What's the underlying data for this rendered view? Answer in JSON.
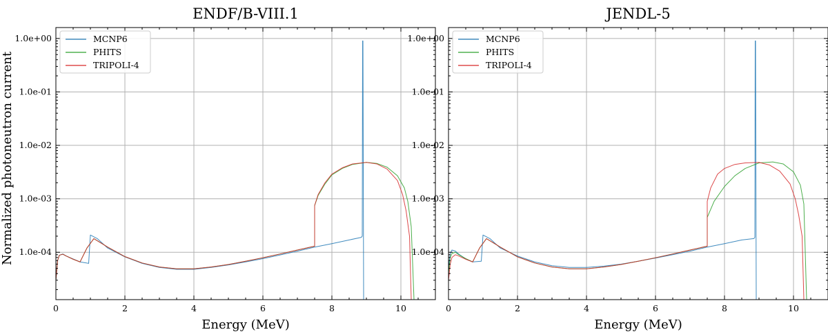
{
  "ylabel": "Normalized photoneutron current",
  "chart_data": [
    {
      "type": "line",
      "title": "ENDF/B-VIII.1",
      "xlabel": "Energy (MeV)",
      "ylabel": "Normalized photoneutron current",
      "xlim": [
        0,
        11
      ],
      "ylim": [
        1.3e-05,
        1.6
      ],
      "yscale": "log",
      "xticks": [
        0,
        2,
        4,
        6,
        8,
        10
      ],
      "yticks": [
        0.0001,
        0.001,
        0.01,
        0.1,
        1
      ],
      "ytick_labels": [
        "1.0e-04",
        "1.0e-03",
        "1.0e-02",
        "1.0e-01",
        "1.0e+00"
      ],
      "grid": true,
      "legend": "top-left",
      "series": [
        {
          "name": "MCNP6",
          "color": "#1f77b4",
          "x": [
            0.0,
            0.05,
            0.1,
            0.2,
            0.3,
            0.5,
            0.7,
            0.95,
            1.0,
            1.2,
            1.5,
            2.0,
            2.5,
            3.0,
            3.5,
            4.0,
            4.5,
            5.0,
            5.5,
            6.0,
            6.5,
            7.0,
            7.5,
            8.0,
            8.5,
            8.85,
            8.88,
            8.89,
            8.9,
            8.92
          ],
          "y": [
            3e-05,
            7e-05,
            8.8e-05,
            9.3e-05,
            8.5e-05,
            7.5e-05,
            6.6e-05,
            6.2e-05,
            0.00021,
            0.00018,
            0.00012,
            8.2e-05,
            6.2e-05,
            5.2e-05,
            4.8e-05,
            4.8e-05,
            5.2e-05,
            5.8e-05,
            6.6e-05,
            7.6e-05,
            8.9e-05,
            0.000105,
            0.000125,
            0.000145,
            0.00017,
            0.00019,
            0.0002,
            0.9,
            0.9,
            1.3e-05
          ]
        },
        {
          "name": "PHITS",
          "color": "#2ca02c",
          "x": [
            0.0,
            0.05,
            0.1,
            0.2,
            0.3,
            0.5,
            0.7,
            0.9,
            1.1,
            1.5,
            2.0,
            2.5,
            3.0,
            3.5,
            4.0,
            4.5,
            5.0,
            5.5,
            6.0,
            6.5,
            7.0,
            7.5,
            7.5,
            7.6,
            7.8,
            8.0,
            8.3,
            8.6,
            9.0,
            9.3,
            9.6,
            9.9,
            10.1,
            10.2,
            10.3,
            10.38
          ],
          "y": [
            3e-05,
            7e-05,
            8.8e-05,
            9.2e-05,
            8.5e-05,
            7.4e-05,
            6.6e-05,
            0.00012,
            0.00018,
            0.000125,
            8.3e-05,
            6.3e-05,
            5.3e-05,
            4.9e-05,
            4.9e-05,
            5.3e-05,
            5.9e-05,
            6.8e-05,
            7.9e-05,
            9.3e-05,
            0.00011,
            0.00013,
            0.00075,
            0.00115,
            0.0019,
            0.0028,
            0.0037,
            0.0044,
            0.0048,
            0.0046,
            0.0039,
            0.0027,
            0.0016,
            0.0009,
            0.0003,
            1.3e-05
          ]
        },
        {
          "name": "TRIPOLI-4",
          "color": "#d62728",
          "x": [
            0.0,
            0.05,
            0.1,
            0.2,
            0.3,
            0.5,
            0.7,
            0.9,
            1.1,
            1.5,
            2.0,
            2.5,
            3.0,
            3.5,
            4.0,
            4.5,
            5.0,
            5.5,
            6.0,
            6.5,
            7.0,
            7.5,
            7.5,
            7.6,
            7.8,
            8.0,
            8.3,
            8.6,
            9.0,
            9.3,
            9.6,
            9.9,
            10.05,
            10.15,
            10.25,
            10.3
          ],
          "y": [
            3e-05,
            7e-05,
            8.8e-05,
            9.2e-05,
            8.5e-05,
            7.4e-05,
            6.6e-05,
            0.00012,
            0.00018,
            0.000125,
            8.3e-05,
            6.3e-05,
            5.3e-05,
            4.9e-05,
            4.9e-05,
            5.3e-05,
            5.9e-05,
            6.8e-05,
            7.9e-05,
            9.3e-05,
            0.00011,
            0.00013,
            0.00075,
            0.0012,
            0.002,
            0.0029,
            0.0038,
            0.0045,
            0.0048,
            0.0045,
            0.0036,
            0.0022,
            0.0012,
            0.0006,
            0.0002,
            1.3e-05
          ]
        }
      ]
    },
    {
      "type": "line",
      "title": "JENDL-5",
      "xlabel": "Energy (MeV)",
      "ylabel": "",
      "xlim": [
        0,
        11
      ],
      "ylim": [
        1.3e-05,
        1.6
      ],
      "yscale": "log",
      "xticks": [
        0,
        2,
        4,
        6,
        8,
        10
      ],
      "yticks": [
        0.0001,
        0.001,
        0.01,
        0.1,
        1
      ],
      "ytick_labels": [
        "1.0e-04",
        "1.0e-03",
        "1.0e-02",
        "1.0e-01",
        "1.0e+00"
      ],
      "grid": true,
      "legend": "top-left",
      "series": [
        {
          "name": "MCNP6",
          "color": "#1f77b4",
          "x": [
            0.0,
            0.05,
            0.1,
            0.2,
            0.3,
            0.5,
            0.7,
            0.95,
            1.0,
            1.2,
            1.5,
            2.0,
            2.5,
            3.0,
            3.5,
            4.0,
            4.5,
            5.0,
            5.5,
            6.0,
            6.5,
            7.0,
            7.5,
            8.0,
            8.5,
            8.85,
            8.88,
            8.89,
            8.9,
            8.92
          ],
          "y": [
            5e-05,
            9.5e-05,
            0.00011,
            0.000105,
            9.2e-05,
            7.5e-05,
            6.6e-05,
            6.8e-05,
            0.00021,
            0.00018,
            0.00012,
            8.5e-05,
            6.6e-05,
            5.6e-05,
            5.2e-05,
            5.2e-05,
            5.5e-05,
            6e-05,
            6.8e-05,
            7.8e-05,
            9e-05,
            0.000105,
            0.000125,
            0.000145,
            0.00017,
            0.00018,
            0.00019,
            0.9,
            0.9,
            1.3e-05
          ]
        },
        {
          "name": "PHITS",
          "color": "#2ca02c",
          "x": [
            0.0,
            0.05,
            0.1,
            0.2,
            0.3,
            0.5,
            0.7,
            0.9,
            1.1,
            1.5,
            2.0,
            2.5,
            3.0,
            3.5,
            4.0,
            4.5,
            5.0,
            5.5,
            6.0,
            6.5,
            7.0,
            7.5,
            7.5,
            7.7,
            8.0,
            8.3,
            8.6,
            9.0,
            9.4,
            9.7,
            10.0,
            10.2,
            10.3,
            10.38
          ],
          "y": [
            4e-05,
            8e-05,
            9.5e-05,
            0.0001,
            9e-05,
            7.6e-05,
            6.6e-05,
            0.00012,
            0.00018,
            0.000125,
            8.2e-05,
            6.3e-05,
            5.3e-05,
            4.9e-05,
            4.9e-05,
            5.3e-05,
            5.9e-05,
            6.8e-05,
            7.9e-05,
            9.3e-05,
            0.00011,
            0.00013,
            0.00045,
            0.0009,
            0.0017,
            0.0027,
            0.0037,
            0.0047,
            0.0049,
            0.0045,
            0.0032,
            0.0018,
            0.0008,
            1.3e-05
          ]
        },
        {
          "name": "TRIPOLI-4",
          "color": "#d62728",
          "x": [
            0.0,
            0.05,
            0.1,
            0.2,
            0.3,
            0.5,
            0.7,
            0.9,
            1.1,
            1.5,
            2.0,
            2.5,
            3.0,
            3.5,
            4.0,
            4.5,
            5.0,
            5.5,
            6.0,
            6.5,
            7.0,
            7.5,
            7.5,
            7.6,
            7.8,
            8.0,
            8.3,
            8.6,
            9.0,
            9.3,
            9.6,
            9.9,
            10.05,
            10.15,
            10.25,
            10.3
          ],
          "y": [
            3e-05,
            6e-05,
            8e-05,
            9e-05,
            8.5e-05,
            7.4e-05,
            6.6e-05,
            0.00012,
            0.00018,
            0.000125,
            8.2e-05,
            6.3e-05,
            5.3e-05,
            4.9e-05,
            4.9e-05,
            5.3e-05,
            5.9e-05,
            6.8e-05,
            7.9e-05,
            9.3e-05,
            0.00011,
            0.00013,
            0.0009,
            0.0016,
            0.0029,
            0.0037,
            0.0044,
            0.0047,
            0.0048,
            0.0043,
            0.0033,
            0.0019,
            0.001,
            0.0005,
            0.0002,
            1.3e-05
          ]
        }
      ]
    }
  ]
}
